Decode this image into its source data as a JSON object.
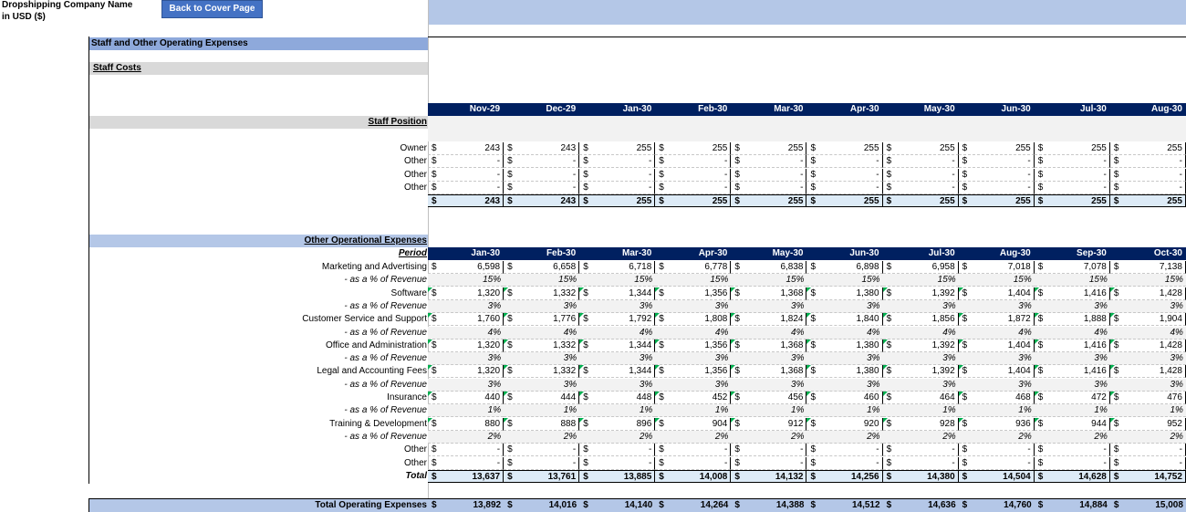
{
  "header": {
    "company": "Dropshipping Company Name",
    "currency": "in USD ($)",
    "back_button": "Back to Cover Page"
  },
  "section_title": "Staff and Other Operating Expenses",
  "staff_costs_title": "Staff Costs",
  "staff": {
    "months": [
      "Nov-29",
      "Dec-29",
      "Jan-30",
      "Feb-30",
      "Mar-30",
      "Apr-30",
      "May-30",
      "Jun-30",
      "Jul-30",
      "Aug-30"
    ],
    "position_label": "Staff Position",
    "rows": [
      {
        "label": "Owner",
        "values": [
          "243",
          "243",
          "255",
          "255",
          "255",
          "255",
          "255",
          "255",
          "255",
          "255"
        ]
      },
      {
        "label": "Other",
        "values": [
          "-",
          "-",
          "-",
          "-",
          "-",
          "-",
          "-",
          "-",
          "-",
          "-"
        ]
      },
      {
        "label": "Other",
        "values": [
          "-",
          "-",
          "-",
          "-",
          "-",
          "-",
          "-",
          "-",
          "-",
          "-"
        ]
      },
      {
        "label": "Other",
        "values": [
          "-",
          "-",
          "-",
          "-",
          "-",
          "-",
          "-",
          "-",
          "-",
          "-"
        ]
      }
    ],
    "total": [
      "243",
      "243",
      "255",
      "255",
      "255",
      "255",
      "255",
      "255",
      "255",
      "255"
    ]
  },
  "other": {
    "title": "Other Operational Expenses",
    "period_label": "Period",
    "months": [
      "Jan-30",
      "Feb-30",
      "Mar-30",
      "Apr-30",
      "May-30",
      "Jun-30",
      "Jul-30",
      "Aug-30",
      "Sep-30",
      "Oct-30"
    ],
    "rows": [
      {
        "label": "Marketing and Advertising",
        "kind": "val",
        "values": [
          "6,598",
          "6,658",
          "6,718",
          "6,778",
          "6,838",
          "6,898",
          "6,958",
          "7,018",
          "7,078",
          "7,138"
        ]
      },
      {
        "label": "- as a % of Revenue",
        "kind": "pct",
        "values": [
          "15%",
          "15%",
          "15%",
          "15%",
          "15%",
          "15%",
          "15%",
          "15%",
          "15%",
          "15%"
        ]
      },
      {
        "label": "Software",
        "kind": "val",
        "values": [
          "1,320",
          "1,332",
          "1,344",
          "1,356",
          "1,368",
          "1,380",
          "1,392",
          "1,404",
          "1,416",
          "1,428"
        ]
      },
      {
        "label": "- as a % of Revenue",
        "kind": "pct",
        "values": [
          "3%",
          "3%",
          "3%",
          "3%",
          "3%",
          "3%",
          "3%",
          "3%",
          "3%",
          "3%"
        ]
      },
      {
        "label": "Customer Service and Support",
        "kind": "val",
        "values": [
          "1,760",
          "1,776",
          "1,792",
          "1,808",
          "1,824",
          "1,840",
          "1,856",
          "1,872",
          "1,888",
          "1,904"
        ]
      },
      {
        "label": "- as a % of Revenue",
        "kind": "pct",
        "values": [
          "4%",
          "4%",
          "4%",
          "4%",
          "4%",
          "4%",
          "4%",
          "4%",
          "4%",
          "4%"
        ]
      },
      {
        "label": "Office and Administration",
        "kind": "val",
        "values": [
          "1,320",
          "1,332",
          "1,344",
          "1,356",
          "1,368",
          "1,380",
          "1,392",
          "1,404",
          "1,416",
          "1,428"
        ]
      },
      {
        "label": "- as a % of Revenue",
        "kind": "pct",
        "values": [
          "3%",
          "3%",
          "3%",
          "3%",
          "3%",
          "3%",
          "3%",
          "3%",
          "3%",
          "3%"
        ]
      },
      {
        "label": "Legal and Accounting Fees",
        "kind": "val",
        "values": [
          "1,320",
          "1,332",
          "1,344",
          "1,356",
          "1,368",
          "1,380",
          "1,392",
          "1,404",
          "1,416",
          "1,428"
        ]
      },
      {
        "label": "- as a % of Revenue",
        "kind": "pct",
        "values": [
          "3%",
          "3%",
          "3%",
          "3%",
          "3%",
          "3%",
          "3%",
          "3%",
          "3%",
          "3%"
        ]
      },
      {
        "label": "Insurance",
        "kind": "val",
        "values": [
          "440",
          "444",
          "448",
          "452",
          "456",
          "460",
          "464",
          "468",
          "472",
          "476"
        ]
      },
      {
        "label": "- as a % of Revenue",
        "kind": "pct",
        "values": [
          "1%",
          "1%",
          "1%",
          "1%",
          "1%",
          "1%",
          "1%",
          "1%",
          "1%",
          "1%"
        ]
      },
      {
        "label": "Training & Development",
        "kind": "val",
        "values": [
          "880",
          "888",
          "896",
          "904",
          "912",
          "920",
          "928",
          "936",
          "944",
          "952"
        ]
      },
      {
        "label": "- as a % of Revenue",
        "kind": "pct",
        "values": [
          "2%",
          "2%",
          "2%",
          "2%",
          "2%",
          "2%",
          "2%",
          "2%",
          "2%",
          "2%"
        ]
      },
      {
        "label": "Other",
        "kind": "plain",
        "values": [
          "-",
          "-",
          "-",
          "-",
          "-",
          "-",
          "-",
          "-",
          "-",
          "-"
        ]
      },
      {
        "label": "Other",
        "kind": "plain",
        "values": [
          "-",
          "-",
          "-",
          "-",
          "-",
          "-",
          "-",
          "-",
          "-",
          "-"
        ]
      }
    ],
    "total_label": "Total",
    "total": [
      "13,637",
      "13,761",
      "13,885",
      "14,008",
      "14,132",
      "14,256",
      "14,380",
      "14,504",
      "14,628",
      "14,752"
    ]
  },
  "grand_total": {
    "label": "Total Operating Expenses",
    "values": [
      "13,892",
      "14,016",
      "14,140",
      "14,264",
      "14,388",
      "14,512",
      "14,636",
      "14,760",
      "14,884",
      "15,008"
    ]
  },
  "currency_symbol": "$",
  "colors": {
    "header_navy": "#002060",
    "band_blue": "#b4c7e7",
    "section_blue": "#8ea9db",
    "input_marker": "#00b050"
  }
}
